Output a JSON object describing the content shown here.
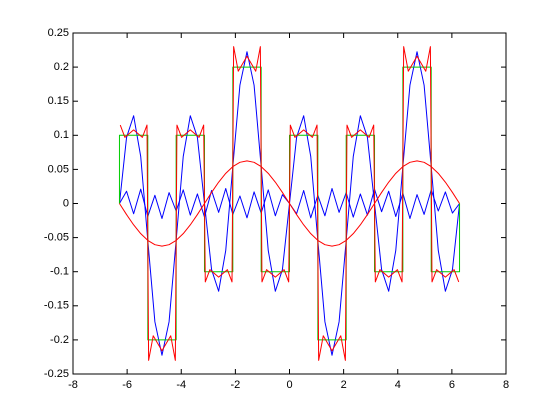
{
  "chart_data": {
    "type": "line",
    "xlim": [
      -8,
      8
    ],
    "ylim": [
      -0.25,
      0.25
    ],
    "xticks": [
      -8,
      -6,
      -4,
      -2,
      0,
      2,
      4,
      6,
      8
    ],
    "yticks": [
      -0.25,
      -0.2,
      -0.15,
      -0.1,
      -0.05,
      0,
      0.05,
      0.1,
      0.15,
      0.2,
      0.25
    ],
    "grid": false,
    "series": [
      {
        "color": "#0000ff",
        "x": [
          -6.2832,
          -6.0214,
          -5.7596,
          -5.4978,
          -5.236,
          -4.9742,
          -4.7124,
          -4.4506,
          -4.1888,
          -3.927,
          -3.6652,
          -3.4034,
          -3.1416,
          -2.8798,
          -2.618,
          -2.3562,
          -2.0944,
          -1.8326,
          -1.5708,
          -1.309,
          -1.0472,
          -0.7854,
          -0.5236,
          -0.2618,
          0,
          0.2618,
          0.5236,
          0.7854,
          1.0472,
          1.309,
          1.5708,
          1.8326,
          2.0944,
          2.3562,
          2.618,
          2.8798,
          3.1416,
          3.4034,
          3.6652,
          3.927,
          4.1888,
          4.4506,
          4.7124,
          4.9742,
          5.236,
          5.4978,
          5.7596,
          6.0214,
          6.2832
        ],
        "values": [
          0,
          0.018,
          -0.015,
          0.021,
          -0.019,
          0.012,
          -0.022,
          0.016,
          -0.011,
          0.02,
          -0.017,
          0.014,
          -0.02,
          0.019,
          -0.013,
          0.022,
          -0.016,
          0.011,
          -0.021,
          0.017,
          -0.014,
          0.02,
          -0.018,
          0.013,
          0,
          -0.015,
          0.019,
          -0.021,
          0.012,
          -0.018,
          0.022,
          -0.013,
          0.016,
          -0.02,
          0.014,
          -0.017,
          0.021,
          -0.012,
          0.018,
          -0.019,
          0.015,
          -0.022,
          0.013,
          -0.016,
          0.02,
          -0.011,
          0.017,
          -0.014,
          0
        ]
      },
      {
        "color": "#0000ff",
        "x": [
          -6.2832,
          -6.0214,
          -5.7596,
          -5.4978,
          -5.236,
          -4.9742,
          -4.7124,
          -4.4506,
          -4.1888,
          -3.927,
          -3.6652,
          -3.4034,
          -3.1416,
          -2.8798,
          -2.618,
          -2.3562,
          -2.0944,
          -1.8326,
          -1.5708,
          -1.309,
          -1.0472,
          -0.7854,
          -0.5236,
          -0.2618,
          0,
          0.2618,
          0.5236,
          0.7854,
          1.0472,
          1.309,
          1.5708,
          1.8326,
          2.0944,
          2.3562,
          2.618,
          2.8798,
          3.1416,
          3.4034,
          3.6652,
          3.927,
          4.1888,
          4.4506,
          4.7124,
          4.9742,
          5.236,
          5.4978,
          5.7596,
          6.0214,
          6.2832
        ],
        "values": [
          0,
          0.0969,
          0.1287,
          0.0689,
          -0.0541,
          -0.1735,
          -0.2225,
          -0.1735,
          -0.0541,
          0.0689,
          0.1287,
          0.0969,
          0,
          -0.0969,
          -0.1287,
          -0.0689,
          0.0541,
          0.1735,
          0.2225,
          0.1735,
          0.0541,
          -0.0689,
          -0.1287,
          -0.0969,
          0,
          0.0969,
          0.1287,
          0.0689,
          -0.0541,
          -0.1735,
          -0.2225,
          -0.1735,
          -0.0541,
          0.0689,
          0.1287,
          0.0969,
          0,
          -0.0969,
          -0.1287,
          -0.0689,
          0.0541,
          0.1735,
          0.2225,
          0.1735,
          0.0541,
          -0.0689,
          -0.1287,
          -0.0969,
          0
        ]
      },
      {
        "color": "#00cc00",
        "x": [
          -6.2832,
          -6.2832,
          -5.236,
          -5.236,
          -4.1888,
          -4.1888,
          -3.1416,
          -3.1416,
          -2.0944,
          -2.0944,
          -1.0472,
          -1.0472,
          0,
          0,
          1.0472,
          1.0472,
          2.0944,
          2.0944,
          3.1416,
          3.1416,
          4.1888,
          4.1888,
          5.236,
          5.236,
          6.2832,
          6.2832
        ],
        "values": [
          0,
          0.1,
          0.1,
          -0.2,
          -0.2,
          0.1,
          0.1,
          -0.1,
          -0.1,
          0.2,
          0.2,
          -0.1,
          -0.1,
          0.1,
          0.1,
          -0.2,
          -0.2,
          0.1,
          0.1,
          -0.1,
          -0.1,
          0.2,
          0.2,
          -0.1,
          -0.1,
          0
        ]
      },
      {
        "color": "#ff0000",
        "x": [
          -6.2532,
          -6.0832,
          -5.7596,
          -5.436,
          -5.266,
          -5.206,
          -5.036,
          -4.7124,
          -4.3888,
          -4.2188,
          -4.1588,
          -3.9888,
          -3.6652,
          -3.3416,
          -3.1716,
          -3.1116,
          -2.9416,
          -2.618,
          -2.2944,
          -2.1244,
          -2.0644,
          -1.8944,
          -1.5708,
          -1.2472,
          -1.0772,
          -1.0172,
          -0.8472,
          -0.5236,
          -0.2,
          -0.03,
          0.03,
          0.2,
          0.5236,
          0.8472,
          1.0172,
          1.0772,
          1.2472,
          1.5708,
          1.8944,
          2.0644,
          2.1244,
          2.2944,
          2.618,
          2.9416,
          3.1116,
          3.1716,
          3.3416,
          3.6652,
          3.9888,
          4.1588,
          4.2188,
          4.3888,
          4.7124,
          5.036,
          5.206,
          5.266,
          5.436,
          5.7596,
          6.0832,
          6.2532
        ],
        "values": [
          0.115,
          0.097,
          0.108,
          0.097,
          0.115,
          -0.23,
          -0.194,
          -0.216,
          -0.194,
          -0.23,
          0.115,
          0.097,
          0.108,
          0.097,
          0.115,
          -0.115,
          -0.097,
          -0.108,
          -0.097,
          -0.115,
          0.23,
          0.194,
          0.216,
          0.194,
          0.23,
          -0.115,
          -0.097,
          -0.108,
          -0.097,
          -0.115,
          0.115,
          0.097,
          0.108,
          0.097,
          0.115,
          -0.23,
          -0.194,
          -0.216,
          -0.194,
          -0.23,
          0.115,
          0.097,
          0.108,
          0.097,
          0.115,
          -0.115,
          -0.097,
          -0.108,
          -0.097,
          -0.115,
          0.23,
          0.194,
          0.216,
          0.194,
          0.23,
          -0.115,
          -0.097,
          -0.108,
          -0.097,
          -0.115
        ]
      },
      {
        "color": "#ff0000",
        "x": [
          -6.2832,
          -6.0214,
          -5.7596,
          -5.4978,
          -5.236,
          -4.9742,
          -4.7124,
          -4.4506,
          -4.1888,
          -3.927,
          -3.6652,
          -3.4034,
          -3.1416,
          -2.8798,
          -2.618,
          -2.3562,
          -2.0944,
          -1.8326,
          -1.5708,
          -1.309,
          -1.0472,
          -0.7854,
          -0.5236,
          -0.2618,
          0,
          0.2618,
          0.5236,
          0.7854,
          1.0472,
          1.309,
          1.5708,
          1.8326,
          2.0944,
          2.3562,
          2.618,
          2.8798,
          3.1416,
          3.4034,
          3.6652,
          3.927,
          4.1888,
          4.4506,
          4.7124,
          4.9742,
          5.236,
          5.4978,
          5.7596,
          6.0214,
          6.2832
        ],
        "values": [
          0,
          -0.0162,
          -0.0313,
          -0.0442,
          -0.0541,
          -0.0604,
          -0.0625,
          -0.0604,
          -0.0541,
          -0.0442,
          -0.0313,
          -0.0162,
          0,
          0.0162,
          0.0313,
          0.0442,
          0.0541,
          0.0604,
          0.0625,
          0.0604,
          0.0541,
          0.0442,
          0.0313,
          0.0162,
          0,
          -0.0162,
          -0.0313,
          -0.0442,
          -0.0541,
          -0.0604,
          -0.0625,
          -0.0604,
          -0.0541,
          -0.0442,
          -0.0313,
          -0.0162,
          0,
          0.0162,
          0.0313,
          0.0442,
          0.0541,
          0.0604,
          0.0625,
          0.0604,
          0.0541,
          0.0442,
          0.0313,
          0.0162,
          0
        ]
      }
    ]
  }
}
